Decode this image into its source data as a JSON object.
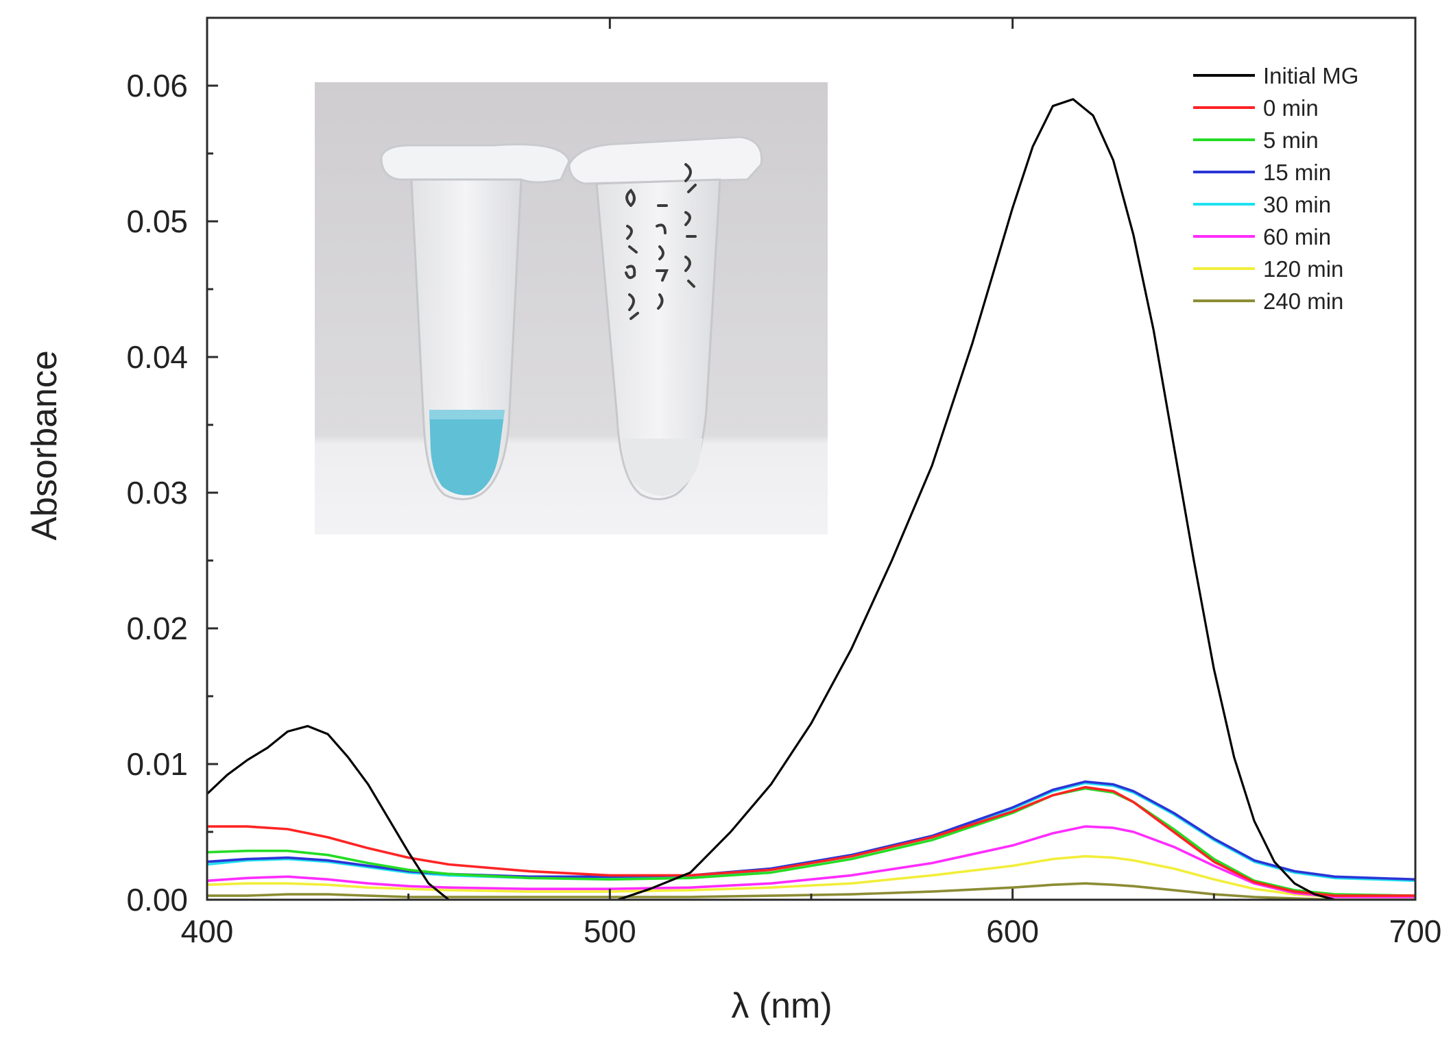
{
  "chart_data": {
    "type": "line",
    "xlabel": "λ (nm)",
    "ylabel": "Absorbance",
    "xlim": [
      400,
      700
    ],
    "ylim": [
      0,
      0.065
    ],
    "x_ticks": [
      400,
      500,
      600,
      700
    ],
    "x_tick_labels": [
      "400",
      "500",
      "600",
      "700"
    ],
    "y_ticks": [
      0,
      0.01,
      0.02,
      0.03,
      0.04,
      0.05,
      0.06
    ],
    "y_tick_labels": [
      "0.00",
      "0.01",
      "0.02",
      "0.03",
      "0.04",
      "0.05",
      "0.06"
    ],
    "grid": false,
    "legend_position": "top-right",
    "inset": "photo of two microcentrifuge tubes: left tube with blue solution, right tube clear",
    "inset_tube_colors": {
      "cap": "#f1f2f3",
      "liquid": "#5fc0d6",
      "background_top": "#cfcdcf",
      "bench": "#f1f1f3"
    },
    "series": [
      {
        "name": "Initial MG",
        "color": "#000000",
        "x": [
          400,
          405,
          410,
          415,
          420,
          425,
          430,
          435,
          440,
          445,
          450,
          455,
          460,
          465,
          470,
          480,
          490,
          500,
          510,
          520,
          530,
          540,
          550,
          560,
          570,
          580,
          590,
          600,
          605,
          610,
          615,
          620,
          625,
          630,
          635,
          640,
          645,
          650,
          655,
          660,
          665,
          670,
          675,
          680,
          690,
          700
        ],
        "y": [
          0.0078,
          0.0092,
          0.0103,
          0.0112,
          0.0124,
          0.0128,
          0.0122,
          0.0105,
          0.0085,
          0.006,
          0.0035,
          0.0012,
          0.0,
          -0.0008,
          -0.001,
          -0.0008,
          -0.0005,
          -0.0002,
          0.0008,
          0.002,
          0.005,
          0.0085,
          0.013,
          0.0185,
          0.025,
          0.032,
          0.041,
          0.051,
          0.0555,
          0.0585,
          0.059,
          0.0578,
          0.0545,
          0.049,
          0.042,
          0.0335,
          0.025,
          0.017,
          0.0105,
          0.0058,
          0.0028,
          0.0012,
          0.0004,
          0.0,
          -0.0005,
          -0.0006
        ]
      },
      {
        "name": "0 min",
        "color": "#ff2424",
        "x": [
          400,
          410,
          420,
          430,
          440,
          450,
          460,
          480,
          500,
          520,
          540,
          560,
          580,
          600,
          610,
          618,
          625,
          630,
          640,
          650,
          660,
          670,
          680,
          700
        ],
        "y": [
          0.0054,
          0.0054,
          0.0052,
          0.0046,
          0.0038,
          0.0031,
          0.0026,
          0.0021,
          0.0018,
          0.0018,
          0.0022,
          0.0032,
          0.0046,
          0.0065,
          0.0077,
          0.0083,
          0.008,
          0.0072,
          0.005,
          0.0028,
          0.0013,
          0.0006,
          0.0003,
          0.0003
        ]
      },
      {
        "name": "5 min",
        "color": "#24dc24",
        "x": [
          400,
          410,
          420,
          430,
          440,
          450,
          460,
          480,
          500,
          520,
          540,
          560,
          580,
          600,
          610,
          618,
          625,
          630,
          640,
          650,
          660,
          670,
          680,
          700
        ],
        "y": [
          0.0035,
          0.0036,
          0.0036,
          0.0033,
          0.0027,
          0.0022,
          0.0019,
          0.0016,
          0.0015,
          0.0016,
          0.002,
          0.003,
          0.0044,
          0.0064,
          0.0077,
          0.0082,
          0.0079,
          0.0072,
          0.0052,
          0.003,
          0.0014,
          0.0007,
          0.0004,
          0.0003
        ]
      },
      {
        "name": "15 min",
        "color": "#2a35d6",
        "x": [
          400,
          410,
          420,
          430,
          440,
          450,
          460,
          480,
          500,
          520,
          540,
          560,
          580,
          600,
          610,
          618,
          625,
          630,
          640,
          650,
          660,
          670,
          680,
          700
        ],
        "y": [
          0.0028,
          0.003,
          0.0031,
          0.0029,
          0.0025,
          0.0021,
          0.0019,
          0.0017,
          0.0017,
          0.0018,
          0.0023,
          0.0033,
          0.0047,
          0.0068,
          0.0081,
          0.0087,
          0.0085,
          0.008,
          0.0064,
          0.0045,
          0.0029,
          0.0021,
          0.0017,
          0.0015
        ]
      },
      {
        "name": "30 min",
        "color": "#20e0ee",
        "x": [
          400,
          410,
          420,
          430,
          440,
          450,
          460,
          480,
          500,
          520,
          540,
          560,
          580,
          600,
          610,
          618,
          625,
          630,
          640,
          650,
          660,
          670,
          680,
          700
        ],
        "y": [
          0.0026,
          0.0029,
          0.003,
          0.0028,
          0.0024,
          0.002,
          0.0018,
          0.0016,
          0.0016,
          0.0017,
          0.0022,
          0.0032,
          0.0046,
          0.0067,
          0.008,
          0.0086,
          0.0084,
          0.0079,
          0.0063,
          0.0044,
          0.0028,
          0.002,
          0.0016,
          0.0014
        ]
      },
      {
        "name": "60 min",
        "color": "#ff2cff",
        "x": [
          400,
          410,
          420,
          430,
          440,
          450,
          460,
          480,
          500,
          520,
          540,
          560,
          580,
          600,
          610,
          618,
          625,
          630,
          640,
          650,
          660,
          670,
          680,
          700
        ],
        "y": [
          0.0014,
          0.0016,
          0.0017,
          0.0015,
          0.0012,
          0.001,
          0.0009,
          0.0008,
          0.0008,
          0.0009,
          0.0012,
          0.0018,
          0.0027,
          0.004,
          0.0049,
          0.0054,
          0.0053,
          0.005,
          0.0039,
          0.0025,
          0.0012,
          0.0005,
          0.0002,
          0.0002
        ]
      },
      {
        "name": "120 min",
        "color": "#f2ee3a",
        "x": [
          400,
          410,
          420,
          430,
          440,
          450,
          460,
          480,
          500,
          520,
          540,
          560,
          580,
          600,
          610,
          618,
          625,
          630,
          640,
          650,
          660,
          670,
          680,
          700
        ],
        "y": [
          0.0011,
          0.0012,
          0.0012,
          0.0011,
          0.0009,
          0.0008,
          0.0007,
          0.0006,
          0.0006,
          0.0007,
          0.0009,
          0.0012,
          0.0018,
          0.0025,
          0.003,
          0.0032,
          0.0031,
          0.0029,
          0.0023,
          0.0015,
          0.0008,
          0.0004,
          0.0002,
          0.0002
        ]
      },
      {
        "name": "240 min",
        "color": "#8c8c34",
        "x": [
          400,
          410,
          420,
          430,
          440,
          450,
          460,
          480,
          500,
          520,
          540,
          560,
          580,
          600,
          610,
          618,
          625,
          630,
          640,
          650,
          660,
          670,
          680,
          700
        ],
        "y": [
          0.0003,
          0.0003,
          0.0004,
          0.0004,
          0.0003,
          0.0002,
          0.0002,
          0.0002,
          0.0002,
          0.0002,
          0.0003,
          0.0004,
          0.0006,
          0.0009,
          0.0011,
          0.0012,
          0.0011,
          0.001,
          0.0007,
          0.0004,
          0.0002,
          0.0001,
          0.0,
          0.0
        ]
      }
    ]
  }
}
